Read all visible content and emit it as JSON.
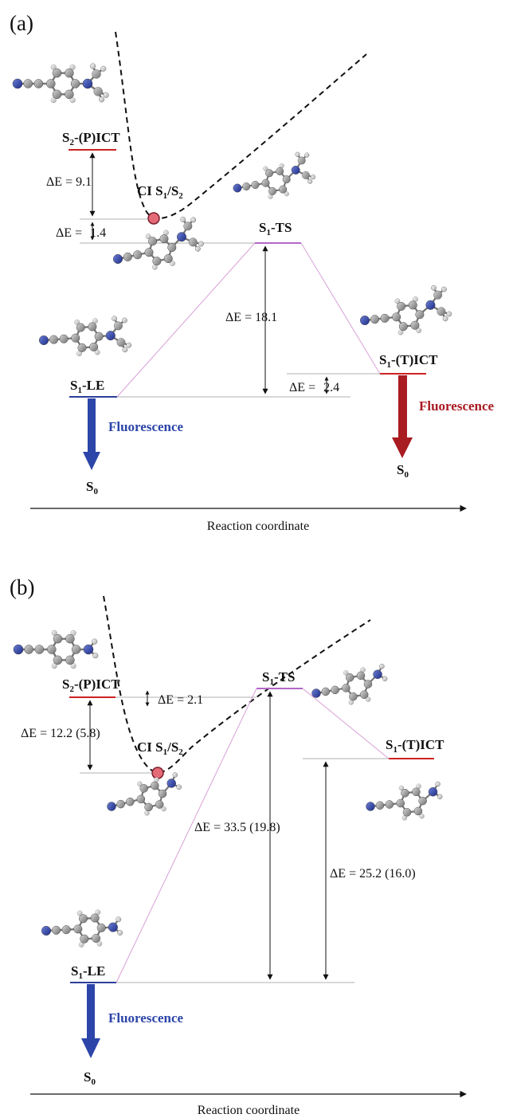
{
  "panel_a": {
    "letter": "(a)",
    "levels": {
      "s2_pict": {
        "pre": "S",
        "sub": "2",
        "post": "-(P)ICT"
      },
      "ci": {
        "pre": "CI S",
        "sub1": "1",
        "mid": "/S",
        "sub2": "2"
      },
      "s1_ts": {
        "pre": "S",
        "sub": "1",
        "post": "-TS"
      },
      "s1_le": {
        "pre": "S",
        "sub": "1",
        "post": "-LE"
      },
      "s1_tict": {
        "pre": "S",
        "sub": "1",
        "post": "-(T)ICT"
      }
    },
    "energies": {
      "e1": "ΔE = 9.1",
      "e2_pre": "ΔE = ",
      "e2_val": "1.4",
      "e3": "ΔE = 18.1",
      "e4_pre": "ΔE = ",
      "e4_val": "2.4"
    },
    "fluor_left": "Fluorescence",
    "fluor_right": "Fluorescence",
    "s0_left": {
      "pre": "S",
      "sub": "0"
    },
    "s0_right": {
      "pre": "S",
      "sub": "0"
    },
    "axis_label": "Reaction coordinate"
  },
  "panel_b": {
    "letter": "(b)",
    "levels": {
      "s2_pict": {
        "pre": "S",
        "sub": "2",
        "post": "-(P)ICT"
      },
      "ci": {
        "pre": "CI S",
        "sub1": "1",
        "mid": "/S",
        "sub2": "2"
      },
      "s1_ts": {
        "pre": "S",
        "sub": "1",
        "post": "-TS"
      },
      "s1_tict": {
        "pre": "S",
        "sub": "1",
        "post": "-(T)ICT"
      },
      "s1_le": {
        "pre": "S",
        "sub": "1",
        "post": "-LE"
      }
    },
    "energies": {
      "e1": "ΔE = 2.1",
      "e2": "ΔE = 12.2 (5.8)",
      "e3": "ΔE = 33.5 (19.8)",
      "e4": "ΔE = 25.2 (16.0)"
    },
    "fluor_left": "Fluorescence",
    "s0_left": {
      "pre": "S",
      "sub": "0"
    },
    "axis_label": "Reaction coordinate"
  },
  "colors": {
    "red_level": "#cc2222",
    "blue_level": "#2b3f9a",
    "purple_level": "#b267c9",
    "pink_line": "#d9a0d8",
    "ci_marker": "#e56a78",
    "fluor_blue": "#2c45a8",
    "fluor_red": "#a81c22",
    "atom_carbon": "#8a8a8a",
    "atom_nitrogen": "#2a3ea8",
    "atom_hydrogen": "#e0e0e0"
  }
}
